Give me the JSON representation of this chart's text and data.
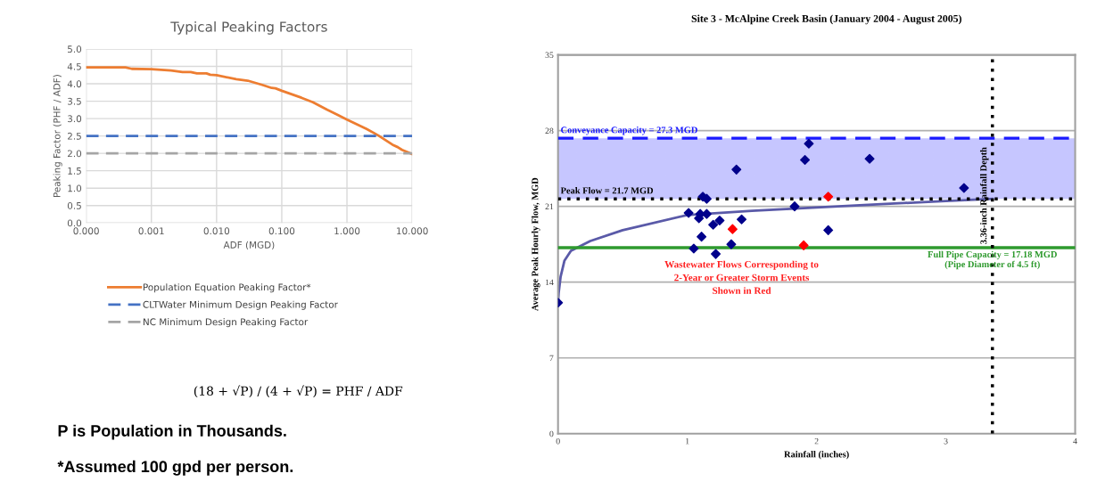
{
  "chart_data": [
    {
      "type": "line",
      "title": "Typical Peaking Factors",
      "xlabel": "ADF (MGD)",
      "ylabel": "Peaking Factor (PHF / ADF)",
      "log": "x",
      "xlim": [
        0.0001,
        10
      ],
      "xticks": [
        {
          "value": 0.0001,
          "label": "0.000"
        },
        {
          "value": 0.001,
          "label": "0.001"
        },
        {
          "value": 0.01,
          "label": "0.010"
        },
        {
          "value": 0.1,
          "label": "0.100"
        },
        {
          "value": 1,
          "label": "1.000"
        },
        {
          "value": 10,
          "label": "10.000"
        }
      ],
      "ylim": [
        0,
        5
      ],
      "yticks": [
        {
          "value": 0,
          "label": "0.0"
        },
        {
          "value": 0.5,
          "label": "0.5"
        },
        {
          "value": 1,
          "label": "1.0"
        },
        {
          "value": 1.5,
          "label": "1.5"
        },
        {
          "value": 2,
          "label": "2.0"
        },
        {
          "value": 2.5,
          "label": "2.5"
        },
        {
          "value": 3,
          "label": "3.0"
        },
        {
          "value": 3.5,
          "label": "3.5"
        },
        {
          "value": 4,
          "label": "4.0"
        },
        {
          "value": 4.5,
          "label": "4.5"
        },
        {
          "value": 5,
          "label": "5.0"
        }
      ],
      "grid": true,
      "legend": "bottom",
      "series": [
        {
          "name": "Population Equation Peaking Factor*",
          "color": "#ed7d31",
          "line_style": "solid",
          "x": [
            0.0001,
            0.0004,
            0.0005,
            0.001,
            0.002,
            0.003,
            0.004,
            0.005,
            0.007,
            0.008,
            0.01,
            0.02,
            0.03,
            0.05,
            0.07,
            0.08,
            0.1,
            0.2,
            0.3,
            0.5,
            0.7,
            1,
            2,
            3,
            5,
            6,
            7,
            10
          ],
          "values": [
            4.47,
            4.47,
            4.43,
            4.42,
            4.38,
            4.34,
            4.34,
            4.3,
            4.3,
            4.26,
            4.25,
            4.13,
            4.09,
            3.97,
            3.88,
            3.87,
            3.8,
            3.6,
            3.47,
            3.25,
            3.12,
            2.97,
            2.7,
            2.52,
            2.25,
            2.18,
            2.1,
            1.98
          ]
        },
        {
          "name": "CLTWater Minimum Design Peaking Factor",
          "color": "#4472c4",
          "line_style": "dashed",
          "x": [
            0.0001,
            10
          ],
          "values": [
            2.5,
            2.5
          ]
        },
        {
          "name": "NC Minimum Design Peaking Factor",
          "color": "#a5a5a5",
          "line_style": "dashed",
          "x": [
            0.0001,
            10
          ],
          "values": [
            2.0,
            2.0
          ]
        }
      ],
      "annotations": [
        "(18 + √P) / (4 + √P) = PHF / ADF",
        "P is Population in Thousands.",
        "*Assumed 100 gpd per person."
      ]
    },
    {
      "type": "scatter",
      "title": "Site 3 - McAlpine Creek Basin (January 2004 - August 2005)",
      "xlabel": "Rainfall (inches)",
      "ylabel": "Average Peak Hourly Flow, MGD",
      "xlim": [
        0,
        4
      ],
      "xticks": [
        0,
        1,
        2,
        3,
        4
      ],
      "ylim": [
        0,
        35
      ],
      "yticks": [
        0,
        7,
        14,
        21,
        28,
        35
      ],
      "grid": "y",
      "marker": "diamond",
      "series": [
        {
          "color": "#00008b",
          "x": [
            0,
            1.01,
            1.05,
            1.09,
            1.11,
            1.12,
            1.1,
            1.15,
            1.15,
            1.2,
            1.22,
            1.25,
            1.34,
            1.38,
            1.42,
            1.83,
            1.91,
            1.94,
            2.09,
            2.41,
            3.14
          ],
          "values": [
            12.1,
            20.4,
            17.1,
            19.9,
            18.2,
            21.9,
            20.3,
            21.7,
            20.3,
            19.3,
            16.6,
            19.7,
            17.5,
            24.4,
            19.8,
            21.0,
            25.3,
            26.8,
            18.8,
            25.4,
            22.7
          ]
        },
        {
          "color": "#ff0000",
          "x": [
            1.35,
            1.9,
            2.09
          ],
          "values": [
            18.9,
            17.4,
            21.9
          ]
        },
        {
          "type": "line",
          "color": "#5a5aa8",
          "marker": "none",
          "x": [
            0,
            0.005,
            0.02,
            0.05,
            0.1,
            0.25,
            0.5,
            1.0,
            1.5,
            2.0,
            2.5,
            3.0,
            3.36
          ],
          "values": [
            12.1,
            13.0,
            14.5,
            16.0,
            16.9,
            17.8,
            18.8,
            20.2,
            20.6,
            20.9,
            21.2,
            21.5,
            21.7
          ]
        }
      ],
      "bands": [
        {
          "axis": "y",
          "from": 21.7,
          "to": 27.3,
          "color": "#a0a0ff"
        }
      ],
      "ref_lines": [
        {
          "axis": "y",
          "value": 27.3,
          "label": "Conveyance Capacity = 27.3 MGD",
          "color": "#1a1aff",
          "line_style": "dashed"
        },
        {
          "axis": "y",
          "value": 21.7,
          "label": "Peak Flow = 21.7 MGD",
          "color": "#000000",
          "line_style": "dotted"
        },
        {
          "axis": "y",
          "value": 17.18,
          "label": "Full Pipe Capacity = 17.18 MGD\n(Pipe Diameter of 4.5 ft)",
          "color": "#2e9a2e",
          "line_style": "solid"
        },
        {
          "axis": "x",
          "value": 3.36,
          "label": "3.36-inch Rainfall Depth",
          "color": "#000000",
          "line_style": "dotted"
        }
      ],
      "annotations": [
        "Wastewater Flows Corresponding to\n2-Year or Greater Storm Events\nShown in Red"
      ]
    }
  ]
}
